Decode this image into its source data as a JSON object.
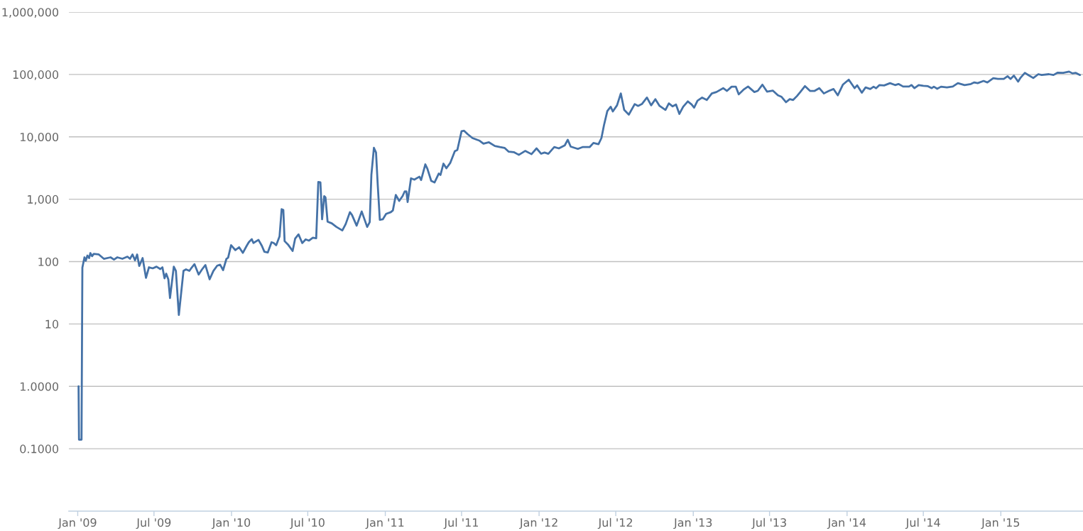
{
  "chart_data": {
    "type": "line",
    "log": "y",
    "grid": "y",
    "line_style": "solid",
    "color": "#4572a7",
    "xlim": [
      "2008-12-11",
      "2015-07-15"
    ],
    "xticks": [
      {
        "value": "2009-01-01",
        "label": "Jan '09"
      },
      {
        "value": "2009-07-01",
        "label": "Jul '09"
      },
      {
        "value": "2010-01-01",
        "label": "Jan '10"
      },
      {
        "value": "2010-07-01",
        "label": "Jul '10"
      },
      {
        "value": "2011-01-01",
        "label": "Jan '11"
      },
      {
        "value": "2011-07-01",
        "label": "Jul '11"
      },
      {
        "value": "2012-01-01",
        "label": "Jan '12"
      },
      {
        "value": "2012-07-01",
        "label": "Jul '12"
      },
      {
        "value": "2013-01-01",
        "label": "Jan '13"
      },
      {
        "value": "2013-07-01",
        "label": "Jul '13"
      },
      {
        "value": "2014-01-01",
        "label": "Jan '14"
      },
      {
        "value": "2014-07-01",
        "label": "Jul '14"
      },
      {
        "value": "2015-01-01",
        "label": "Jan '15"
      }
    ],
    "ylim": [
      0.01,
      1000000
    ],
    "yticks": [
      {
        "value": 0.1,
        "label": "0.1000"
      },
      {
        "value": 1,
        "label": "1.0000"
      },
      10,
      100,
      {
        "value": 1000,
        "label": "1,000"
      },
      {
        "value": 10000,
        "label": "10,000"
      },
      {
        "value": 100000,
        "label": "100,000"
      },
      {
        "value": 1000000,
        "label": "1,000,000"
      }
    ],
    "x": [
      "2009-01-03",
      "2009-01-04",
      "2009-01-10",
      "2009-01-12",
      "2009-01-17",
      "2009-01-20",
      "2009-01-24",
      "2009-01-28",
      "2009-01-31",
      "2009-02-04",
      "2009-02-08",
      "2009-02-20",
      "2009-03-04",
      "2009-03-20",
      "2009-03-28",
      "2009-04-05",
      "2009-04-17",
      "2009-04-29",
      "2009-05-05",
      "2009-05-11",
      "2009-05-17",
      "2009-05-22",
      "2009-05-27",
      "2009-06-04",
      "2009-06-12",
      "2009-06-19",
      "2009-06-28",
      "2009-07-07",
      "2009-07-16",
      "2009-07-21",
      "2009-07-26",
      "2009-07-30",
      "2009-08-04",
      "2009-08-08",
      "2009-08-17",
      "2009-08-22",
      "2009-08-29",
      "2009-09-09",
      "2009-09-15",
      "2009-09-23",
      "2009-09-29",
      "2009-10-05",
      "2009-10-15",
      "2009-10-23",
      "2009-10-31",
      "2009-11-10",
      "2009-11-19",
      "2009-11-28",
      "2009-12-05",
      "2009-12-12",
      "2009-12-20",
      "2009-12-24",
      "2009-12-31",
      "2010-01-10",
      "2010-01-19",
      "2010-01-28",
      "2010-02-06",
      "2010-02-11",
      "2010-02-18",
      "2010-02-22",
      "2010-03-06",
      "2010-03-14",
      "2010-03-20",
      "2010-03-28",
      "2010-04-06",
      "2010-04-11",
      "2010-04-17",
      "2010-04-25",
      "2010-04-30",
      "2010-05-04",
      "2010-05-07",
      "2010-05-15",
      "2010-05-26",
      "2010-06-01",
      "2010-06-09",
      "2010-06-18",
      "2010-06-26",
      "2010-07-04",
      "2010-07-13",
      "2010-07-21",
      "2010-07-26",
      "2010-07-31",
      "2010-08-04",
      "2010-08-09",
      "2010-08-12",
      "2010-08-17",
      "2010-08-27",
      "2010-09-07",
      "2010-09-21",
      "2010-09-29",
      "2010-10-09",
      "2010-10-14",
      "2010-10-25",
      "2010-11-06",
      "2010-11-19",
      "2010-11-25",
      "2010-11-29",
      "2010-12-05",
      "2010-12-10",
      "2010-12-14",
      "2010-12-19",
      "2010-12-26",
      "2011-01-03",
      "2011-01-14",
      "2011-01-19",
      "2011-01-26",
      "2011-02-03",
      "2011-02-11",
      "2011-02-16",
      "2011-02-20",
      "2011-02-23",
      "2011-03-03",
      "2011-03-11",
      "2011-03-23",
      "2011-03-27",
      "2011-04-06",
      "2011-04-11",
      "2011-04-20",
      "2011-04-28",
      "2011-05-08",
      "2011-05-12",
      "2011-05-19",
      "2011-05-26",
      "2011-06-04",
      "2011-06-15",
      "2011-06-21",
      "2011-07-01",
      "2011-07-07",
      "2011-07-16",
      "2011-07-27",
      "2011-08-13",
      "2011-08-22",
      "2011-09-04",
      "2011-09-18",
      "2011-09-30",
      "2011-10-11",
      "2011-10-21",
      "2011-11-02",
      "2011-11-14",
      "2011-11-29",
      "2011-12-14",
      "2011-12-26",
      "2012-01-06",
      "2012-01-14",
      "2012-01-23",
      "2012-02-06",
      "2012-02-17",
      "2012-03-02",
      "2012-03-09",
      "2012-03-16",
      "2012-04-02",
      "2012-04-13",
      "2012-04-30",
      "2012-05-09",
      "2012-05-21",
      "2012-05-28",
      "2012-06-03",
      "2012-06-11",
      "2012-06-19",
      "2012-06-24",
      "2012-07-04",
      "2012-07-13",
      "2012-07-21",
      "2012-08-01",
      "2012-08-15",
      "2012-08-23",
      "2012-09-01",
      "2012-09-13",
      "2012-09-23",
      "2012-10-03",
      "2012-10-13",
      "2012-10-27",
      "2012-11-04",
      "2012-11-13",
      "2012-11-21",
      "2012-11-29",
      "2012-12-08",
      "2012-12-19",
      "2012-12-28",
      "2013-01-03",
      "2013-01-11",
      "2013-01-22",
      "2013-02-02",
      "2013-02-14",
      "2013-02-25",
      "2013-03-13",
      "2013-03-22",
      "2013-04-02",
      "2013-04-12",
      "2013-04-19",
      "2013-04-30",
      "2013-05-11",
      "2013-05-26",
      "2013-06-03",
      "2013-06-14",
      "2013-06-25",
      "2013-07-09",
      "2013-07-21",
      "2013-07-29",
      "2013-08-09",
      "2013-08-18",
      "2013-08-26",
      "2013-09-04",
      "2013-09-12",
      "2013-09-23",
      "2013-10-05",
      "2013-10-16",
      "2013-10-27",
      "2013-11-07",
      "2013-11-19",
      "2013-11-30",
      "2013-12-10",
      "2013-12-22",
      "2014-01-05",
      "2014-01-19",
      "2014-01-25",
      "2014-02-05",
      "2014-02-14",
      "2014-02-25",
      "2014-03-05",
      "2014-03-11",
      "2014-03-19",
      "2014-03-30",
      "2014-04-13",
      "2014-04-25",
      "2014-05-03",
      "2014-05-14",
      "2014-05-28",
      "2014-06-03",
      "2014-06-10",
      "2014-06-20",
      "2014-07-01",
      "2014-07-12",
      "2014-07-21",
      "2014-07-26",
      "2014-08-03",
      "2014-08-12",
      "2014-08-26",
      "2014-09-09",
      "2014-09-21",
      "2014-10-07",
      "2014-10-22",
      "2014-10-30",
      "2014-11-07",
      "2014-11-21",
      "2014-11-30",
      "2014-12-14",
      "2014-12-25",
      "2015-01-08",
      "2015-01-17",
      "2015-01-24",
      "2015-02-01",
      "2015-02-11",
      "2015-02-17",
      "2015-02-27",
      "2015-03-08",
      "2015-03-19",
      "2015-03-31",
      "2015-04-08",
      "2015-04-25",
      "2015-05-06",
      "2015-05-16",
      "2015-05-29",
      "2015-06-12",
      "2015-06-20",
      "2015-06-28",
      "2015-07-08"
    ],
    "values": [
      1,
      0.14,
      0.14,
      80,
      117,
      103,
      125,
      114,
      137,
      122,
      133,
      130,
      111,
      117,
      108,
      117,
      111,
      120,
      111,
      130,
      105,
      130,
      85,
      114,
      55,
      81,
      78,
      83,
      76,
      81,
      54,
      64,
      52,
      26,
      83,
      71,
      14,
      71,
      75,
      71,
      81,
      91,
      62,
      75,
      88,
      52,
      71,
      86,
      89,
      73,
      111,
      116,
      183,
      153,
      170,
      138,
      179,
      204,
      229,
      199,
      223,
      179,
      144,
      140,
      204,
      199,
      183,
      254,
      692,
      674,
      213,
      188,
      148,
      233,
      273,
      198,
      227,
      217,
      241,
      237,
      1890,
      1860,
      476,
      1120,
      1070,
      437,
      410,
      360,
      316,
      400,
      620,
      558,
      377,
      636,
      360,
      429,
      2470,
      6670,
      5600,
      1730,
      468,
      476,
      582,
      620,
      662,
      1170,
      940,
      1120,
      1330,
      1330,
      900,
      2160,
      2060,
      2300,
      2030,
      3620,
      3060,
      1970,
      1860,
      2580,
      2450,
      3720,
      3140,
      3800,
      5890,
      6150,
      12300,
      12500,
      10960,
      9550,
      8650,
      7780,
      8170,
      7130,
      6850,
      6650,
      5770,
      5680,
      5140,
      5950,
      5280,
      6530,
      5360,
      5600,
      5360,
      6850,
      6530,
      7300,
      8970,
      6980,
      6410,
      6850,
      6850,
      7980,
      7640,
      9550,
      15300,
      25900,
      30300,
      25500,
      32000,
      49600,
      27000,
      22700,
      33500,
      31300,
      33500,
      42600,
      32000,
      40100,
      31300,
      27000,
      34400,
      30800,
      33000,
      23300,
      30300,
      37000,
      33000,
      29400,
      38000,
      42600,
      39000,
      49600,
      52300,
      60300,
      54500,
      63600,
      63600,
      48000,
      56900,
      64000,
      52300,
      54500,
      68500,
      53000,
      55000,
      46300,
      44000,
      35900,
      40300,
      39000,
      45000,
      52300,
      65000,
      54500,
      54500,
      60300,
      49600,
      54500,
      58400,
      46300,
      68500,
      82500,
      60300,
      67000,
      51000,
      62000,
      58400,
      63600,
      60000,
      67600,
      66700,
      72500,
      67600,
      70300,
      64000,
      64000,
      67600,
      60300,
      67600,
      65700,
      64800,
      60300,
      63600,
      59000,
      63600,
      62000,
      64000,
      72500,
      67600,
      70300,
      74500,
      72500,
      78600,
      74500,
      87000,
      84800,
      84800,
      93600,
      84800,
      95700,
      76800,
      89000,
      106000,
      97000,
      87700,
      101000,
      98000,
      101000,
      98000,
      107000,
      106000,
      111000,
      104000,
      106000,
      98000
    ]
  }
}
